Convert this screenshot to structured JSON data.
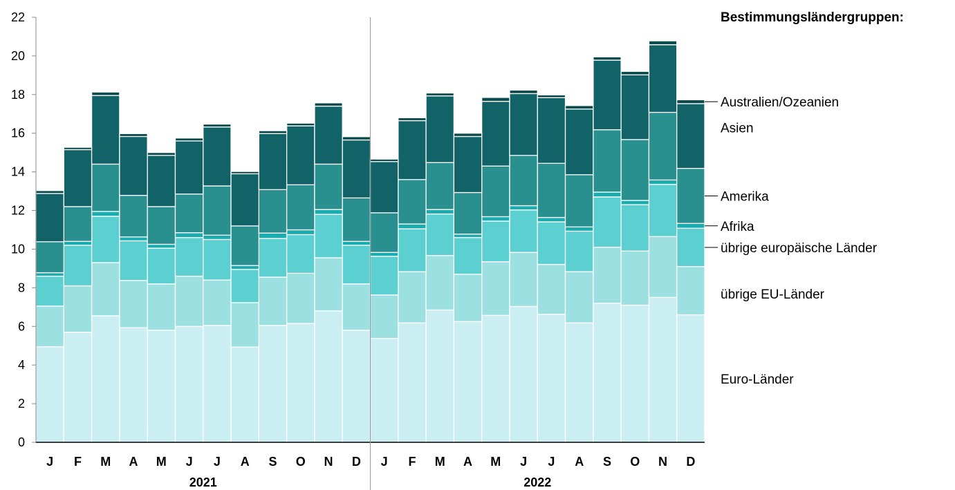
{
  "chart_data": {
    "type": "bar",
    "stacked": true,
    "y_ticks": [
      "0",
      "2",
      "4",
      "6",
      "8",
      "10",
      "12",
      "14",
      "16",
      "18",
      "20",
      "22"
    ],
    "ylim": [
      0,
      22
    ],
    "grid": false,
    "legend_title": "Bestimmungsländergruppen:",
    "legend_placement": "right",
    "categories": [
      "J",
      "F",
      "M",
      "A",
      "M",
      "J",
      "J",
      "A",
      "S",
      "O",
      "N",
      "D",
      "J",
      "F",
      "M",
      "A",
      "M",
      "J",
      "J",
      "A",
      "S",
      "O",
      "N",
      "D"
    ],
    "years": [
      "2021",
      "2022"
    ],
    "series": [
      {
        "name": "Euro-Länder",
        "color": "#cbeef3",
        "values": [
          4.95,
          5.7,
          6.55,
          5.93,
          5.8,
          6.0,
          6.05,
          4.93,
          6.05,
          6.15,
          6.8,
          5.8,
          5.38,
          6.18,
          6.85,
          6.25,
          6.57,
          7.03,
          6.63,
          6.18,
          7.2,
          7.1,
          7.5,
          6.6
        ]
      },
      {
        "name": "übrige EU-Länder",
        "color": "#9de0e1",
        "values": [
          2.1,
          2.4,
          2.75,
          2.45,
          2.4,
          2.6,
          2.35,
          2.3,
          2.5,
          2.6,
          2.75,
          2.4,
          2.25,
          2.65,
          2.82,
          2.45,
          2.78,
          2.8,
          2.58,
          2.65,
          2.9,
          2.8,
          3.15,
          2.5
        ]
      },
      {
        "name": "übrige europäische Länder",
        "color": "#5ccfd1",
        "values": [
          1.55,
          2.1,
          2.4,
          2.05,
          1.85,
          2.0,
          2.1,
          1.72,
          2.0,
          2.0,
          2.25,
          2.0,
          2.0,
          2.22,
          2.15,
          1.9,
          2.1,
          2.2,
          2.2,
          2.1,
          2.6,
          2.4,
          2.7,
          1.98
        ]
      },
      {
        "name": "Afrika",
        "color": "#19adb0",
        "values": [
          0.18,
          0.2,
          0.25,
          0.2,
          0.2,
          0.25,
          0.22,
          0.2,
          0.28,
          0.25,
          0.25,
          0.2,
          0.2,
          0.25,
          0.23,
          0.18,
          0.23,
          0.22,
          0.23,
          0.22,
          0.25,
          0.22,
          0.23,
          0.25
        ]
      },
      {
        "name": "Amerika",
        "color": "#2a8f8f",
        "values": [
          1.6,
          1.8,
          2.45,
          2.15,
          1.95,
          2.0,
          2.55,
          2.05,
          2.25,
          2.33,
          2.35,
          2.25,
          2.05,
          2.3,
          2.43,
          2.15,
          2.62,
          2.6,
          2.8,
          2.7,
          3.23,
          3.15,
          3.5,
          2.85
        ]
      },
      {
        "name": "Asien",
        "color": "#126368",
        "values": [
          2.5,
          2.95,
          3.55,
          3.05,
          2.65,
          2.75,
          3.05,
          2.7,
          2.9,
          3.05,
          3.0,
          3.0,
          2.65,
          3.05,
          3.45,
          2.9,
          3.35,
          3.2,
          3.4,
          3.4,
          3.6,
          3.35,
          3.5,
          3.35
        ]
      },
      {
        "name": "Australien/Ozeanien",
        "color": "#0b4a4d",
        "values": [
          0.15,
          0.12,
          0.18,
          0.15,
          0.15,
          0.15,
          0.15,
          0.12,
          0.15,
          0.14,
          0.17,
          0.17,
          0.13,
          0.15,
          0.15,
          0.17,
          0.2,
          0.18,
          0.14,
          0.18,
          0.17,
          0.18,
          0.2,
          0.2
        ]
      }
    ]
  }
}
